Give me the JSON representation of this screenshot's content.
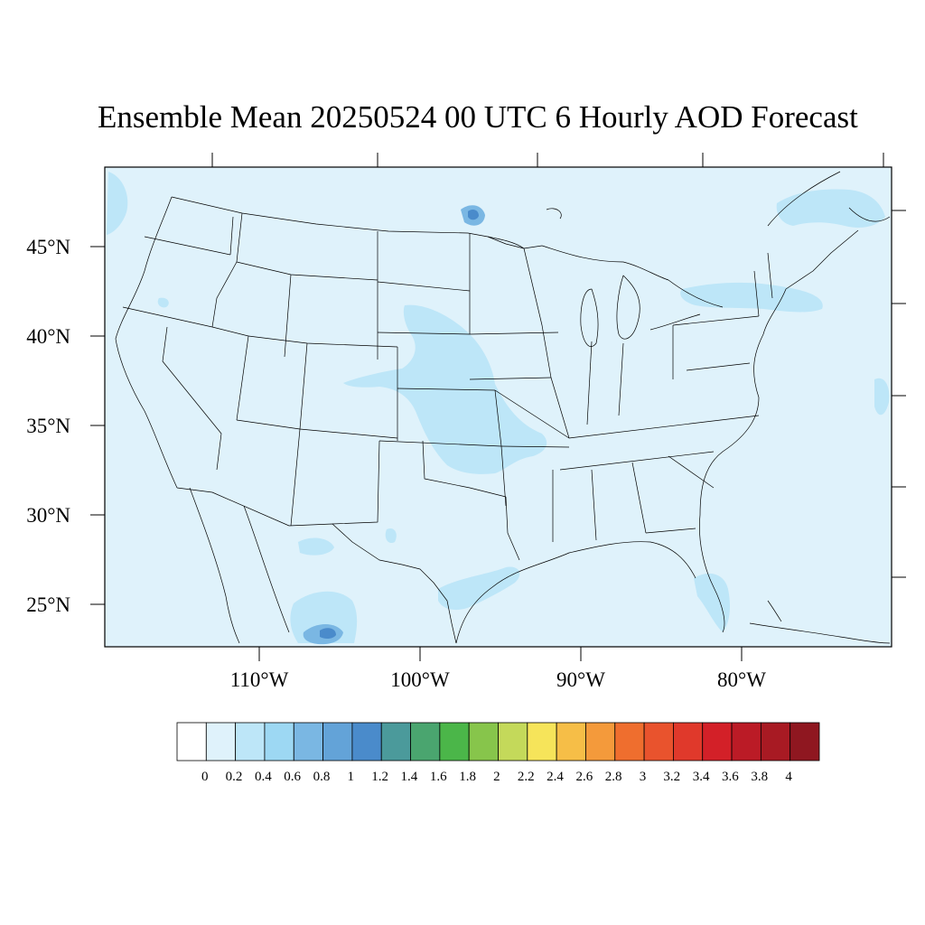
{
  "title": "Ensemble Mean 20250524 00 UTC 6 Hourly AOD Forecast",
  "lat_labels": [
    "45°N",
    "40°N",
    "35°N",
    "30°N",
    "25°N"
  ],
  "lon_labels": [
    "110°W",
    "100°W",
    "90°W",
    "80°W"
  ],
  "map": {
    "field_background_color": "#dff2fb",
    "border_color": "#000000"
  },
  "colorbar": {
    "labels": [
      "0",
      "0.2",
      "0.4",
      "0.6",
      "0.8",
      "1",
      "1.2",
      "1.4",
      "1.6",
      "1.8",
      "2",
      "2.2",
      "2.4",
      "2.6",
      "2.8",
      "3",
      "3.2",
      "3.4",
      "3.6",
      "3.8",
      "4"
    ],
    "colors": [
      "#ffffff",
      "#dff2fb",
      "#bde6f8",
      "#9dd8f3",
      "#7ab7e3",
      "#63a3d8",
      "#4a8bcb",
      "#4b9a9b",
      "#4aa56f",
      "#4bb649",
      "#87c54b",
      "#c4d95a",
      "#f6e45a",
      "#f6be47",
      "#f49a3b",
      "#ef6e2e",
      "#e9532d",
      "#e0392b",
      "#d32028",
      "#bb1b26",
      "#a81a23",
      "#8f1720"
    ]
  }
}
